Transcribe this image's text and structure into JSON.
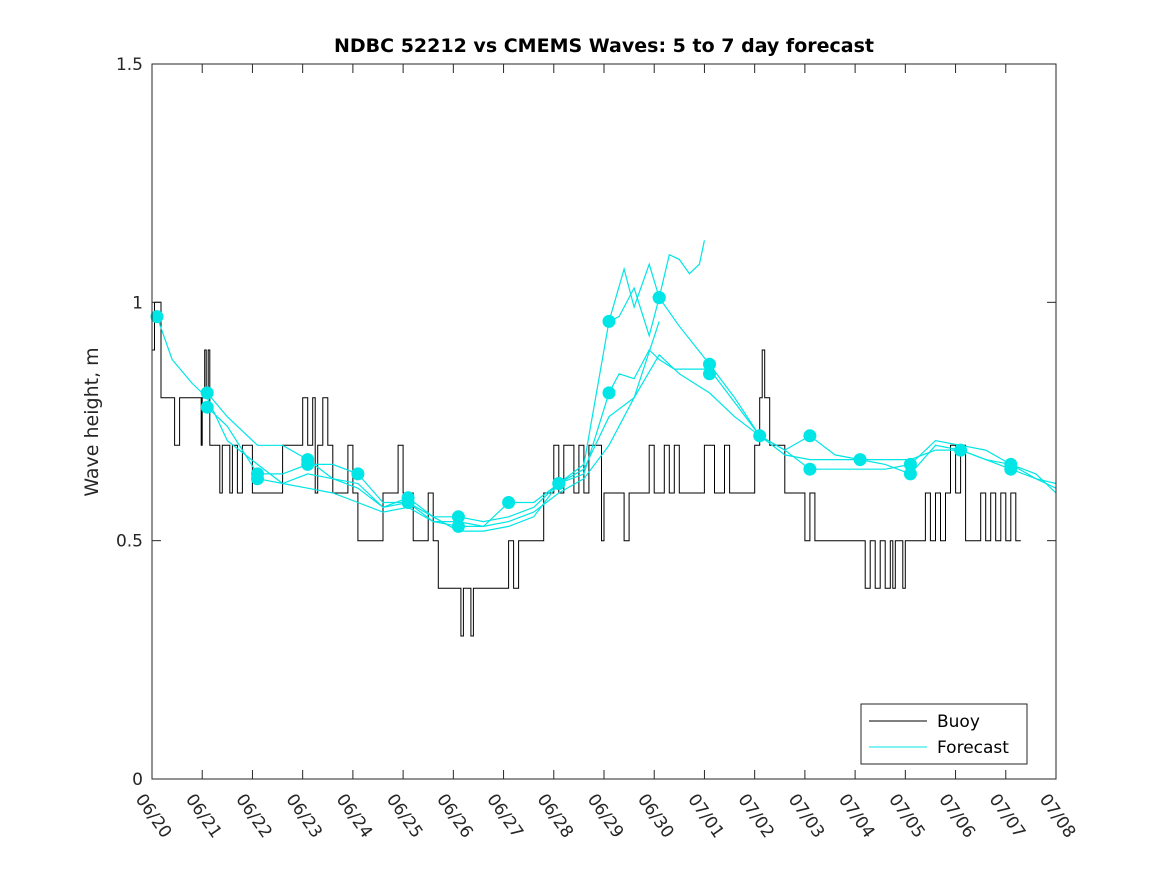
{
  "chart_data": {
    "type": "line",
    "title": "NDBC 52212 vs CMEMS Waves: 5 to 7 day forecast",
    "ylabel": "Wave height, m",
    "xlabel": "",
    "ylim": [
      0,
      1.5
    ],
    "yticks": [
      0,
      0.5,
      1,
      1.5
    ],
    "ytick_labels": [
      "0",
      "0.5",
      "1",
      "1.5"
    ],
    "xlim_days": [
      0,
      18
    ],
    "xticks": [
      "06/20",
      "06/21",
      "06/22",
      "06/23",
      "06/24",
      "06/25",
      "06/26",
      "06/27",
      "06/28",
      "06/29",
      "06/30",
      "07/01",
      "07/02",
      "07/03",
      "07/04",
      "07/05",
      "07/06",
      "07/07",
      "07/08"
    ],
    "legend": {
      "position": "bottom-right",
      "entries": [
        {
          "label": "Buoy",
          "color": "#000000"
        },
        {
          "label": "Forecast",
          "color": "#00e5e5"
        }
      ]
    },
    "buoy": {
      "color": "#000000",
      "points": [
        [
          0.0,
          0.9
        ],
        [
          0.05,
          1.0
        ],
        [
          0.12,
          1.0
        ],
        [
          0.18,
          0.8
        ],
        [
          0.4,
          0.8
        ],
        [
          0.45,
          0.7
        ],
        [
          0.5,
          0.7
        ],
        [
          0.55,
          0.8
        ],
        [
          0.95,
          0.8
        ],
        [
          0.98,
          0.7
        ],
        [
          1.0,
          0.8
        ],
        [
          1.05,
          0.9
        ],
        [
          1.08,
          0.8
        ],
        [
          1.12,
          0.9
        ],
        [
          1.15,
          0.7
        ],
        [
          1.3,
          0.7
        ],
        [
          1.35,
          0.6
        ],
        [
          1.4,
          0.7
        ],
        [
          1.5,
          0.7
        ],
        [
          1.55,
          0.6
        ],
        [
          1.6,
          0.7
        ],
        [
          1.7,
          0.6
        ],
        [
          1.8,
          0.7
        ],
        [
          2.0,
          0.6
        ],
        [
          2.5,
          0.6
        ],
        [
          2.6,
          0.7
        ],
        [
          2.9,
          0.7
        ],
        [
          3.0,
          0.8
        ],
        [
          3.1,
          0.7
        ],
        [
          3.2,
          0.8
        ],
        [
          3.25,
          0.6
        ],
        [
          3.3,
          0.7
        ],
        [
          3.4,
          0.8
        ],
        [
          3.5,
          0.7
        ],
        [
          3.6,
          0.6
        ],
        [
          3.8,
          0.6
        ],
        [
          3.9,
          0.7
        ],
        [
          4.0,
          0.6
        ],
        [
          4.1,
          0.5
        ],
        [
          4.5,
          0.5
        ],
        [
          4.6,
          0.6
        ],
        [
          4.9,
          0.7
        ],
        [
          5.0,
          0.6
        ],
        [
          5.1,
          0.6
        ],
        [
          5.2,
          0.5
        ],
        [
          5.5,
          0.6
        ],
        [
          5.6,
          0.5
        ],
        [
          5.7,
          0.4
        ],
        [
          6.1,
          0.4
        ],
        [
          6.15,
          0.3
        ],
        [
          6.2,
          0.4
        ],
        [
          6.35,
          0.3
        ],
        [
          6.4,
          0.4
        ],
        [
          7.05,
          0.4
        ],
        [
          7.1,
          0.5
        ],
        [
          7.2,
          0.4
        ],
        [
          7.3,
          0.5
        ],
        [
          7.7,
          0.5
        ],
        [
          7.8,
          0.6
        ],
        [
          7.95,
          0.6
        ],
        [
          8.0,
          0.7
        ],
        [
          8.1,
          0.6
        ],
        [
          8.2,
          0.7
        ],
        [
          8.4,
          0.6
        ],
        [
          8.5,
          0.7
        ],
        [
          8.6,
          0.6
        ],
        [
          8.7,
          0.7
        ],
        [
          8.9,
          0.7
        ],
        [
          8.95,
          0.5
        ],
        [
          9.0,
          0.6
        ],
        [
          9.3,
          0.6
        ],
        [
          9.4,
          0.5
        ],
        [
          9.5,
          0.6
        ],
        [
          9.8,
          0.6
        ],
        [
          9.9,
          0.7
        ],
        [
          10.0,
          0.6
        ],
        [
          10.2,
          0.7
        ],
        [
          10.3,
          0.6
        ],
        [
          10.4,
          0.7
        ],
        [
          10.5,
          0.6
        ],
        [
          10.9,
          0.6
        ],
        [
          11.0,
          0.7
        ],
        [
          11.2,
          0.6
        ],
        [
          11.4,
          0.7
        ],
        [
          11.5,
          0.6
        ],
        [
          11.9,
          0.6
        ],
        [
          12.0,
          0.7
        ],
        [
          12.1,
          0.8
        ],
        [
          12.15,
          0.9
        ],
        [
          12.2,
          0.8
        ],
        [
          12.3,
          0.7
        ],
        [
          12.5,
          0.7
        ],
        [
          12.6,
          0.6
        ],
        [
          12.9,
          0.6
        ],
        [
          13.0,
          0.5
        ],
        [
          13.1,
          0.6
        ],
        [
          13.2,
          0.5
        ],
        [
          14.1,
          0.5
        ],
        [
          14.2,
          0.4
        ],
        [
          14.3,
          0.5
        ],
        [
          14.4,
          0.4
        ],
        [
          14.5,
          0.5
        ],
        [
          14.6,
          0.4
        ],
        [
          14.7,
          0.5
        ],
        [
          14.75,
          0.4
        ],
        [
          14.8,
          0.5
        ],
        [
          14.9,
          0.5
        ],
        [
          14.95,
          0.4
        ],
        [
          15.0,
          0.5
        ],
        [
          15.1,
          0.5
        ],
        [
          15.3,
          0.5
        ],
        [
          15.4,
          0.6
        ],
        [
          15.5,
          0.5
        ],
        [
          15.6,
          0.6
        ],
        [
          15.7,
          0.5
        ],
        [
          15.8,
          0.6
        ],
        [
          15.9,
          0.7
        ],
        [
          16.0,
          0.6
        ],
        [
          16.1,
          0.7
        ],
        [
          16.2,
          0.5
        ],
        [
          16.5,
          0.6
        ],
        [
          16.6,
          0.5
        ],
        [
          16.7,
          0.6
        ],
        [
          16.8,
          0.5
        ],
        [
          16.9,
          0.6
        ],
        [
          17.0,
          0.5
        ],
        [
          17.1,
          0.6
        ],
        [
          17.2,
          0.5
        ],
        [
          17.3,
          0.5
        ]
      ]
    },
    "forecast": {
      "color": "#00e5e5",
      "series": [
        {
          "points": [
            [
              0.1,
              0.97
            ],
            [
              0.4,
              0.88
            ],
            [
              0.8,
              0.83
            ],
            [
              1.1,
              0.8
            ],
            [
              1.5,
              0.71
            ],
            [
              2.1,
              0.66
            ],
            [
              2.6,
              0.62
            ],
            [
              3.1,
              0.61
            ],
            [
              3.6,
              0.6
            ],
            [
              4.1,
              0.58
            ],
            [
              4.6,
              0.56
            ],
            [
              5.1,
              0.57
            ],
            [
              5.6,
              0.54
            ],
            [
              6.1,
              0.53
            ],
            [
              6.6,
              0.53
            ],
            [
              7.1,
              0.54
            ],
            [
              7.6,
              0.56
            ],
            [
              8.1,
              0.6
            ],
            [
              8.6,
              0.63
            ],
            [
              9.1,
              0.7
            ],
            [
              9.6,
              0.8
            ],
            [
              10.1,
              0.89
            ],
            [
              10.5,
              0.85
            ],
            [
              11.1,
              0.81
            ],
            [
              11.6,
              0.76
            ],
            [
              12.1,
              0.72
            ],
            [
              12.6,
              0.68
            ],
            [
              13.1,
              0.67
            ],
            [
              13.6,
              0.67
            ],
            [
              14.1,
              0.67
            ],
            [
              14.6,
              0.67
            ],
            [
              15.1,
              0.67
            ],
            [
              15.6,
              0.69
            ],
            [
              16.1,
              0.69
            ],
            [
              16.6,
              0.67
            ],
            [
              17.1,
              0.65
            ],
            [
              17.6,
              0.63
            ],
            [
              18.0,
              0.62
            ]
          ]
        },
        {
          "points": [
            [
              1.1,
              0.81
            ],
            [
              1.5,
              0.76
            ],
            [
              2.1,
              0.7
            ],
            [
              2.6,
              0.7
            ],
            [
              3.1,
              0.67
            ],
            [
              3.6,
              0.63
            ],
            [
              4.1,
              0.61
            ],
            [
              4.6,
              0.57
            ],
            [
              5.1,
              0.59
            ],
            [
              5.6,
              0.55
            ],
            [
              6.1,
              0.55
            ],
            [
              6.6,
              0.54
            ],
            [
              7.1,
              0.55
            ],
            [
              7.6,
              0.57
            ],
            [
              8.1,
              0.62
            ],
            [
              8.6,
              0.64
            ],
            [
              9.1,
              0.81
            ],
            [
              9.3,
              0.85
            ],
            [
              9.6,
              0.84
            ],
            [
              9.9,
              0.9
            ],
            [
              10.1,
              0.88
            ],
            [
              10.4,
              0.86
            ],
            [
              11.1,
              0.86
            ],
            [
              11.6,
              0.79
            ],
            [
              12.1,
              0.72
            ],
            [
              12.6,
              0.69
            ],
            [
              13.1,
              0.65
            ],
            [
              13.6,
              0.65
            ],
            [
              14.1,
              0.65
            ],
            [
              14.6,
              0.65
            ],
            [
              15.1,
              0.66
            ],
            [
              15.6,
              0.71
            ],
            [
              16.1,
              0.7
            ],
            [
              16.6,
              0.69
            ],
            [
              17.1,
              0.66
            ],
            [
              17.6,
              0.63
            ],
            [
              18.0,
              0.61
            ]
          ]
        },
        {
          "points": [
            [
              1.1,
              0.78
            ],
            [
              1.5,
              0.74
            ],
            [
              2.1,
              0.64
            ],
            [
              2.6,
              0.64
            ],
            [
              3.1,
              0.66
            ],
            [
              3.6,
              0.66
            ],
            [
              4.1,
              0.64
            ],
            [
              4.6,
              0.58
            ],
            [
              5.1,
              0.58
            ],
            [
              5.6,
              0.54
            ],
            [
              6.1,
              0.54
            ],
            [
              6.6,
              0.53
            ],
            [
              7.1,
              0.58
            ],
            [
              7.6,
              0.58
            ],
            [
              8.1,
              0.62
            ],
            [
              8.6,
              0.66
            ],
            [
              9.1,
              0.96
            ],
            [
              9.3,
              0.97
            ],
            [
              9.6,
              1.03
            ],
            [
              9.9,
              0.93
            ],
            [
              10.1,
              1.01
            ],
            [
              10.5,
              0.95
            ],
            [
              11.1,
              0.87
            ],
            [
              11.6,
              0.8
            ],
            [
              12.1,
              0.72
            ],
            [
              12.6,
              0.69
            ],
            [
              13.1,
              0.72
            ],
            [
              13.6,
              0.68
            ],
            [
              14.1,
              0.67
            ],
            [
              14.6,
              0.66
            ],
            [
              15.1,
              0.64
            ],
            [
              15.6,
              0.7
            ],
            [
              16.1,
              0.69
            ],
            [
              16.6,
              0.67
            ],
            [
              17.1,
              0.66
            ],
            [
              17.6,
              0.64
            ],
            [
              18.0,
              0.6
            ]
          ]
        },
        {
          "points": [
            [
              2.1,
              0.63
            ],
            [
              2.6,
              0.62
            ],
            [
              3.1,
              0.64
            ],
            [
              3.6,
              0.63
            ],
            [
              4.1,
              0.62
            ],
            [
              4.6,
              0.57
            ],
            [
              5.1,
              0.58
            ],
            [
              5.6,
              0.55
            ],
            [
              6.1,
              0.52
            ],
            [
              6.6,
              0.52
            ],
            [
              7.1,
              0.53
            ],
            [
              7.6,
              0.55
            ],
            [
              8.1,
              0.62
            ],
            [
              8.6,
              0.65
            ],
            [
              9.1,
              0.76
            ],
            [
              9.6,
              0.8
            ],
            [
              10.1,
              0.96
            ]
          ]
        },
        {
          "points": [
            [
              9.1,
              0.96
            ],
            [
              9.4,
              1.07
            ],
            [
              9.6,
              0.99
            ],
            [
              9.9,
              1.08
            ],
            [
              10.1,
              1.01
            ],
            [
              10.3,
              1.1
            ],
            [
              10.5,
              1.09
            ],
            [
              10.7,
              1.06
            ],
            [
              10.9,
              1.08
            ],
            [
              11.0,
              1.13
            ]
          ]
        }
      ],
      "markers": [
        [
          0.1,
          0.97
        ],
        [
          1.1,
          0.81
        ],
        [
          1.1,
          0.78
        ],
        [
          2.1,
          0.64
        ],
        [
          2.1,
          0.63
        ],
        [
          3.1,
          0.67
        ],
        [
          3.1,
          0.66
        ],
        [
          4.1,
          0.64
        ],
        [
          5.1,
          0.59
        ],
        [
          5.1,
          0.58
        ],
        [
          6.1,
          0.55
        ],
        [
          6.1,
          0.53
        ],
        [
          7.1,
          0.58
        ],
        [
          8.1,
          0.62
        ],
        [
          8.1,
          0.62
        ],
        [
          9.1,
          0.96
        ],
        [
          9.1,
          0.81
        ],
        [
          10.1,
          1.01
        ],
        [
          10.1,
          1.01
        ],
        [
          11.1,
          0.87
        ],
        [
          11.1,
          0.85
        ],
        [
          12.1,
          0.72
        ],
        [
          13.1,
          0.72
        ],
        [
          13.1,
          0.65
        ],
        [
          14.1,
          0.67
        ],
        [
          15.1,
          0.66
        ],
        [
          15.1,
          0.64
        ],
        [
          16.1,
          0.69
        ],
        [
          17.1,
          0.66
        ],
        [
          17.1,
          0.65
        ]
      ]
    }
  }
}
